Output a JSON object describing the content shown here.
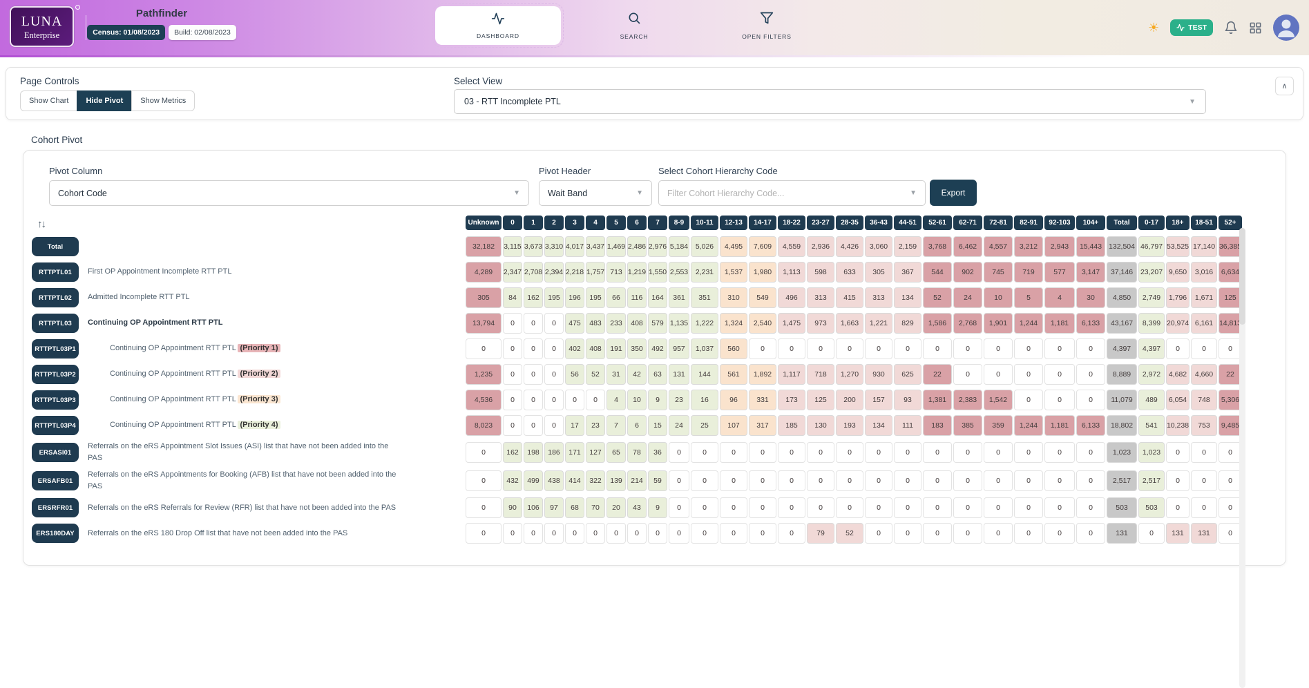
{
  "header": {
    "logo_line1": "LUNA",
    "logo_line2": "Enterprise",
    "app_title": "Pathfinder",
    "census_badge": "Census: 01/08/2023",
    "build_badge": "Build: 02/08/2023",
    "nav_dashboard": "DASHBOARD",
    "nav_search": "SEARCH",
    "nav_open_filters": "OPEN FILTERS",
    "env_badge": "TEST"
  },
  "page_controls": {
    "title": "Page Controls",
    "buttons": [
      {
        "label": "Show Chart",
        "active": false
      },
      {
        "label": "Hide Pivot",
        "active": true
      },
      {
        "label": "Show Metrics",
        "active": false
      }
    ],
    "select_view_label": "Select View",
    "select_view_value": "03 - RTT Incomplete PTL"
  },
  "cohort_pivot": {
    "section_title": "Cohort Pivot",
    "pivot_column_label": "Pivot Column",
    "pivot_column_value": "Cohort Code",
    "pivot_header_label": "Pivot Header",
    "pivot_header_value": "Wait Band",
    "hierarchy_label": "Select Cohort Hierarchy Code",
    "hierarchy_placeholder": "Filter Cohort Hierarchy Code...",
    "export_label": "Export"
  },
  "pivot_table": {
    "columns": [
      "Unknown",
      "0",
      "1",
      "2",
      "3",
      "4",
      "5",
      "6",
      "7",
      "8-9",
      "10-11",
      "12-13",
      "14-17",
      "18-22",
      "23-27",
      "28-35",
      "36-43",
      "44-51",
      "52-61",
      "62-71",
      "72-81",
      "82-91",
      "92-103",
      "104+",
      "Total",
      "0-17",
      "18+",
      "18-51",
      "52+"
    ],
    "rows": [
      {
        "code": "Total",
        "description": "",
        "bold": false,
        "indent": false,
        "priority_level": 0,
        "priority_label": "",
        "values": [
          "32,182",
          "3,115",
          "3,673",
          "3,310",
          "4,017",
          "3,437",
          "1,469",
          "2,486",
          "2,976",
          "5,184",
          "5,026",
          "4,495",
          "7,609",
          "4,559",
          "2,936",
          "4,426",
          "3,060",
          "2,159",
          "3,768",
          "6,462",
          "4,557",
          "3,212",
          "2,943",
          "15,443",
          "132,504",
          "46,797",
          "53,525",
          "17,140",
          "36,385"
        ]
      },
      {
        "code": "RTTPTL01",
        "description": "First OP Appointment Incomplete RTT PTL",
        "bold": false,
        "indent": false,
        "priority_level": 0,
        "priority_label": "",
        "values": [
          "4,289",
          "2,347",
          "2,708",
          "2,394",
          "2,218",
          "1,757",
          "713",
          "1,219",
          "1,550",
          "2,553",
          "2,231",
          "1,537",
          "1,980",
          "1,113",
          "598",
          "633",
          "305",
          "367",
          "544",
          "902",
          "745",
          "719",
          "577",
          "3,147",
          "37,146",
          "23,207",
          "9,650",
          "3,016",
          "6,634"
        ]
      },
      {
        "code": "RTTPTL02",
        "description": "Admitted Incomplete RTT PTL",
        "bold": false,
        "indent": false,
        "priority_level": 0,
        "priority_label": "",
        "values": [
          "305",
          "84",
          "162",
          "195",
          "196",
          "195",
          "66",
          "116",
          "164",
          "361",
          "351",
          "310",
          "549",
          "496",
          "313",
          "415",
          "313",
          "134",
          "52",
          "24",
          "10",
          "5",
          "4",
          "30",
          "4,850",
          "2,749",
          "1,796",
          "1,671",
          "125"
        ]
      },
      {
        "code": "RTTPTL03",
        "description": "Continuing OP Appointment RTT PTL",
        "bold": true,
        "indent": false,
        "priority_level": 0,
        "priority_label": "",
        "values": [
          "13,794",
          "0",
          "0",
          "0",
          "475",
          "483",
          "233",
          "408",
          "579",
          "1,135",
          "1,222",
          "1,324",
          "2,540",
          "1,475",
          "973",
          "1,663",
          "1,221",
          "829",
          "1,586",
          "2,768",
          "1,901",
          "1,244",
          "1,181",
          "6,133",
          "43,167",
          "8,399",
          "20,974",
          "6,161",
          "14,813"
        ]
      },
      {
        "code": "RTTPTL03P1",
        "description": "Continuing OP Appointment RTT PTL",
        "bold": false,
        "indent": true,
        "priority_level": 1,
        "priority_label": "(Priority 1)",
        "values": [
          "0",
          "0",
          "0",
          "0",
          "402",
          "408",
          "191",
          "350",
          "492",
          "957",
          "1,037",
          "560",
          "0",
          "0",
          "0",
          "0",
          "0",
          "0",
          "0",
          "0",
          "0",
          "0",
          "0",
          "0",
          "4,397",
          "4,397",
          "0",
          "0",
          "0"
        ]
      },
      {
        "code": "RTTPTL03P2",
        "description": "Continuing OP Appointment RTT PTL",
        "bold": false,
        "indent": true,
        "priority_level": 2,
        "priority_label": "(Priority 2)",
        "values": [
          "1,235",
          "0",
          "0",
          "0",
          "56",
          "52",
          "31",
          "42",
          "63",
          "131",
          "144",
          "561",
          "1,892",
          "1,117",
          "718",
          "1,270",
          "930",
          "625",
          "22",
          "0",
          "0",
          "0",
          "0",
          "0",
          "8,889",
          "2,972",
          "4,682",
          "4,660",
          "22"
        ]
      },
      {
        "code": "RTTPTL03P3",
        "description": "Continuing OP Appointment RTT PTL",
        "bold": false,
        "indent": true,
        "priority_level": 3,
        "priority_label": "(Priority 3)",
        "values": [
          "4,536",
          "0",
          "0",
          "0",
          "0",
          "0",
          "4",
          "10",
          "9",
          "23",
          "16",
          "96",
          "331",
          "173",
          "125",
          "200",
          "157",
          "93",
          "1,381",
          "2,383",
          "1,542",
          "0",
          "0",
          "0",
          "11,079",
          "489",
          "6,054",
          "748",
          "5,306"
        ]
      },
      {
        "code": "RTTPTL03P4",
        "description": "Continuing OP Appointment RTT PTL",
        "bold": false,
        "indent": true,
        "priority_level": 4,
        "priority_label": "(Priority 4)",
        "values": [
          "8,023",
          "0",
          "0",
          "0",
          "17",
          "23",
          "7",
          "6",
          "15",
          "24",
          "25",
          "107",
          "317",
          "185",
          "130",
          "193",
          "134",
          "111",
          "183",
          "385",
          "359",
          "1,244",
          "1,181",
          "6,133",
          "18,802",
          "541",
          "10,238",
          "753",
          "9,485"
        ]
      },
      {
        "code": "ERSASI01",
        "description": "Referrals on the eRS Appointment Slot Issues (ASI) list that have not been added into the PAS",
        "bold": false,
        "indent": false,
        "priority_level": 0,
        "priority_label": "",
        "values": [
          "0",
          "162",
          "198",
          "186",
          "171",
          "127",
          "65",
          "78",
          "36",
          "0",
          "0",
          "0",
          "0",
          "0",
          "0",
          "0",
          "0",
          "0",
          "0",
          "0",
          "0",
          "0",
          "0",
          "0",
          "1,023",
          "1,023",
          "0",
          "0",
          "0"
        ]
      },
      {
        "code": "ERSAFB01",
        "description": "Referrals on the eRS Appointments for Booking (AFB) list that have not been added into the PAS",
        "bold": false,
        "indent": false,
        "priority_level": 0,
        "priority_label": "",
        "values": [
          "0",
          "432",
          "499",
          "438",
          "414",
          "322",
          "139",
          "214",
          "59",
          "0",
          "0",
          "0",
          "0",
          "0",
          "0",
          "0",
          "0",
          "0",
          "0",
          "0",
          "0",
          "0",
          "0",
          "0",
          "2,517",
          "2,517",
          "0",
          "0",
          "0"
        ]
      },
      {
        "code": "ERSRFR01",
        "description": "Referrals on the eRS Referrals for Review (RFR) list that have not been added into the PAS",
        "bold": false,
        "indent": false,
        "priority_level": 0,
        "priority_label": "",
        "values": [
          "0",
          "90",
          "106",
          "97",
          "68",
          "70",
          "20",
          "43",
          "9",
          "0",
          "0",
          "0",
          "0",
          "0",
          "0",
          "0",
          "0",
          "0",
          "0",
          "0",
          "0",
          "0",
          "0",
          "0",
          "503",
          "503",
          "0",
          "0",
          "0"
        ]
      },
      {
        "code": "ERS180DAY",
        "description": "Referrals on the eRS 180 Drop Off list that have not been added into the PAS",
        "bold": false,
        "indent": false,
        "priority_level": 0,
        "priority_label": "",
        "values": [
          "0",
          "0",
          "0",
          "0",
          "0",
          "0",
          "0",
          "0",
          "0",
          "0",
          "0",
          "0",
          "0",
          "0",
          "79",
          "52",
          "0",
          "0",
          "0",
          "0",
          "0",
          "0",
          "0",
          "0",
          "131",
          "0",
          "131",
          "131",
          "0"
        ]
      }
    ]
  },
  "colors": {
    "navy": "#1F3B50",
    "heat_green": "#E9EFDA",
    "heat_peach": "#FAE3CD",
    "heat_pink": "#F1D9D7",
    "heat_rose": "#D9A1A6",
    "total_gray": "#C8C8C8",
    "zero_white": "#FFFFFF",
    "test_green": "#2BB08A",
    "header_purple": "#C673E0",
    "chip_p1": "#E8B5B8",
    "chip_p2": "#F3D8D7",
    "chip_p3": "#FBE6D1",
    "chip_p4": "#EAF0DB"
  }
}
